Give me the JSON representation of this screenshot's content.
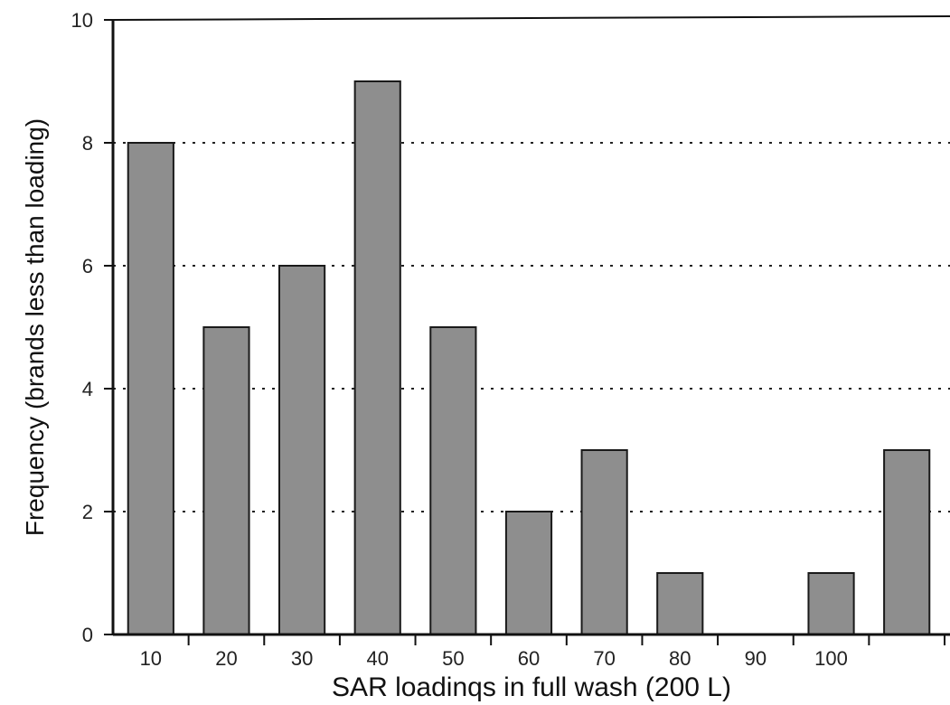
{
  "chart_data": {
    "type": "bar",
    "categories": [
      "10",
      "20",
      "30",
      "40",
      "50",
      "60",
      "70",
      "80",
      "90",
      "100",
      ""
    ],
    "values": [
      8,
      5,
      6,
      9,
      5,
      2,
      3,
      1,
      0,
      1,
      3
    ],
    "xlabel": "SAR loadinqs in full wash (200 L)",
    "ylabel": "Frequency (brands less than loading)",
    "ylim": [
      0,
      10
    ],
    "yticks": [
      0,
      2,
      4,
      6,
      8,
      10
    ],
    "grid": "horizontal dotted",
    "legend": "none",
    "colors": {
      "bar_fill": "#8e8e8e",
      "bar_stroke": "#1a1a1a"
    }
  }
}
